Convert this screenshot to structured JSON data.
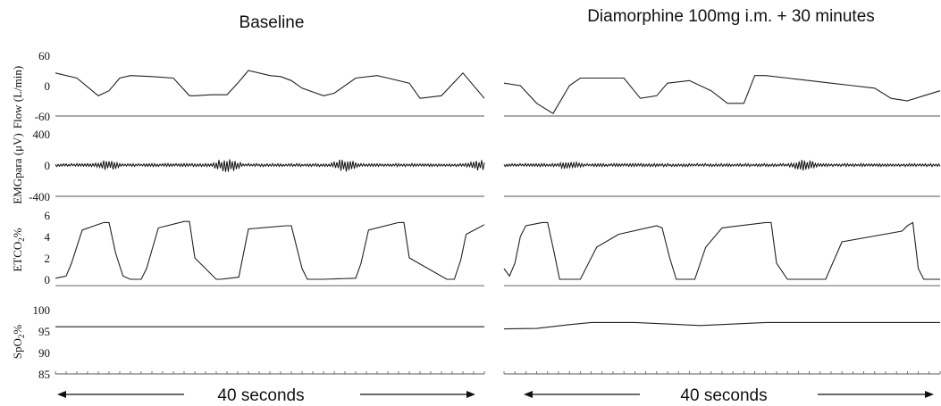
{
  "chart_data": {
    "type": "line",
    "time_span_label": "40 seconds",
    "panels": [
      {
        "title": "Baseline"
      },
      {
        "title": "Diamorphine 100mg i.m. + 30 minutes"
      }
    ],
    "channels": [
      {
        "key": "flow",
        "ylabel": "Flow (L/min)",
        "ylim": [
          -60,
          60
        ],
        "yticks": [
          {
            "v": 60,
            "t": "60"
          },
          {
            "v": 0,
            "t": "0"
          },
          {
            "v": -60,
            "t": "-60"
          }
        ],
        "baseline_value": -60,
        "series": [
          {
            "x": [
              0,
              2,
              4,
              5,
              6,
              7,
              9,
              11,
              12.5,
              13,
              14.5,
              16,
              17,
              18,
              20,
              21,
              22,
              23,
              25,
              26,
              28,
              30,
              31,
              33,
              34,
              36,
              38,
              40
            ],
            "y": [
              25,
              15,
              -20,
              -10,
              15,
              20,
              18,
              15,
              -20,
              -20,
              -18,
              -18,
              5,
              30,
              20,
              18,
              10,
              -5,
              -20,
              -15,
              15,
              20,
              15,
              5,
              -25,
              -20,
              25,
              -25
            ]
          },
          {
            "x": [
              0,
              1.5,
              3,
              4.5,
              6,
              7,
              9,
              11,
              12.5,
              14,
              15,
              17,
              19,
              20.5,
              22,
              23,
              24,
              26,
              28,
              30,
              32,
              34,
              35.5,
              37,
              38.5,
              40
            ],
            "y": [
              5,
              0,
              -35,
              -55,
              0,
              15,
              15,
              15,
              -25,
              -20,
              5,
              10,
              -10,
              -35,
              -35,
              20,
              20,
              15,
              10,
              5,
              0,
              -5,
              -25,
              -30,
              -20,
              -10
            ]
          }
        ]
      },
      {
        "key": "emg",
        "ylabel": "EMGpara (μV)",
        "ylim": [
          -400,
          400
        ],
        "yticks": [
          {
            "v": 400,
            "t": "400"
          },
          {
            "v": 0,
            "t": "0"
          },
          {
            "v": -400,
            "t": "-400"
          }
        ],
        "baseline_value": -400,
        "series": [
          {
            "baseline_amplitude": 20,
            "bursts": [
              {
                "x": 5,
                "amp": 70
              },
              {
                "x": 16,
                "amp": 100
              },
              {
                "x": 27,
                "amp": 90
              },
              {
                "x": 39.5,
                "amp": 70
              }
            ]
          },
          {
            "baseline_amplitude": 20,
            "bursts": [
              {
                "x": 6,
                "amp": 60
              },
              {
                "x": 27.5,
                "amp": 80
              }
            ]
          }
        ]
      },
      {
        "key": "etco2",
        "ylabel": "ETCO2%",
        "ylim": [
          0,
          6
        ],
        "yticks": [
          {
            "v": 6,
            "t": "6"
          },
          {
            "v": 4,
            "t": "4"
          },
          {
            "v": 2,
            "t": "2"
          },
          {
            "v": 0,
            "t": "0"
          }
        ],
        "baseline_value": -0.6,
        "series": [
          {
            "x": [
              0,
              1,
              1.5,
              2.5,
              4.5,
              5,
              5.6,
              6.3,
              7,
              8,
              8.5,
              9.6,
              12,
              12.5,
              13,
              15,
              15.4,
              17.1,
              18,
              21.5,
              22,
              23,
              23.5,
              25,
              28,
              28.5,
              29.2,
              32,
              32.5,
              33,
              36.5,
              37.2,
              37.8,
              38.3,
              40
            ],
            "y": [
              0.1,
              0.3,
              1.5,
              4.6,
              5.3,
              5.3,
              2.5,
              0.3,
              0,
              0,
              1,
              4.8,
              5.4,
              5.4,
              2,
              0,
              0,
              0.2,
              4.7,
              5,
              5,
              1,
              0,
              0,
              0.1,
              1.5,
              4.6,
              5.3,
              5.3,
              2,
              0,
              0,
              1.8,
              4.2,
              5.1
            ]
          },
          {
            "x": [
              0,
              0.5,
              1,
              1.5,
              2,
              3.5,
              4,
              4.6,
              5.1,
              6,
              7,
              8.5,
              10.5,
              14,
              14.5,
              15.2,
              15.8,
              17,
              17.5,
              18.5,
              20,
              24,
              24.5,
              25,
              26,
              27,
              28.5,
              29.5,
              31,
              36.5,
              37,
              37.5,
              38,
              38.5,
              40
            ],
            "y": [
              1,
              0.3,
              1.5,
              4,
              5,
              5.3,
              5.3,
              2.5,
              0,
              0,
              0,
              3,
              4.2,
              5,
              4.8,
              2,
              0,
              0,
              0,
              3,
              4.8,
              5.3,
              5.3,
              1.5,
              0,
              0,
              0,
              0,
              3.5,
              4.5,
              5,
              5.3,
              1,
              0,
              0
            ]
          }
        ]
      },
      {
        "key": "spo2",
        "ylabel": "SpO2%",
        "ylim": [
          85,
          100
        ],
        "yticks": [
          {
            "v": 100,
            "t": "100"
          },
          {
            "v": 95,
            "t": "95"
          },
          {
            "v": 90,
            "t": "90"
          },
          {
            "v": 85,
            "t": "85"
          }
        ],
        "baseline_value": 85,
        "series": [
          {
            "x": [
              0,
              5,
              10,
              15,
              20,
              25,
              30,
              35,
              40
            ],
            "y": [
              96,
              96,
              96,
              96,
              96,
              96,
              96,
              96,
              96
            ]
          },
          {
            "x": [
              0,
              3,
              6,
              8,
              12,
              18,
              24,
              30,
              40
            ],
            "y": [
              95.5,
              95.6,
              96.5,
              97,
              97,
              96.3,
              97,
              97,
              97
            ]
          }
        ]
      }
    ]
  }
}
